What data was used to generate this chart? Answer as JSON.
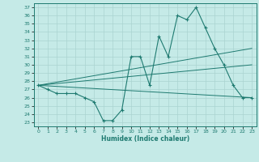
{
  "xlabel": "Humidex (Indice chaleur)",
  "bg_color": "#c5eae7",
  "grid_color": "#aad4d1",
  "line_color": "#1e7a70",
  "ylim": [
    22.5,
    37.5
  ],
  "xlim": [
    -0.5,
    23.5
  ],
  "yticks": [
    23,
    24,
    25,
    26,
    27,
    28,
    29,
    30,
    31,
    32,
    33,
    34,
    35,
    36,
    37
  ],
  "xticks": [
    0,
    1,
    2,
    3,
    4,
    5,
    6,
    7,
    8,
    9,
    10,
    11,
    12,
    13,
    14,
    15,
    16,
    17,
    18,
    19,
    20,
    21,
    22,
    23
  ],
  "data_line": {
    "x": [
      0,
      1,
      2,
      3,
      4,
      5,
      6,
      7,
      8,
      9,
      10,
      11,
      12,
      13,
      14,
      15,
      16,
      17,
      18,
      19,
      20,
      21,
      22,
      23
    ],
    "y": [
      27.5,
      27.0,
      26.5,
      26.5,
      26.5,
      26.0,
      25.5,
      23.2,
      23.2,
      24.5,
      31.0,
      31.0,
      27.5,
      33.5,
      31.0,
      36.0,
      35.5,
      37.0,
      34.5,
      32.0,
      30.0,
      27.5,
      26.0,
      26.0
    ]
  },
  "regression_line1": {
    "x": [
      0,
      23
    ],
    "y": [
      27.5,
      26.0
    ]
  },
  "regression_line2": {
    "x": [
      0,
      23
    ],
    "y": [
      27.5,
      32.0
    ]
  },
  "regression_line3": {
    "x": [
      0,
      23
    ],
    "y": [
      27.5,
      30.0
    ]
  }
}
